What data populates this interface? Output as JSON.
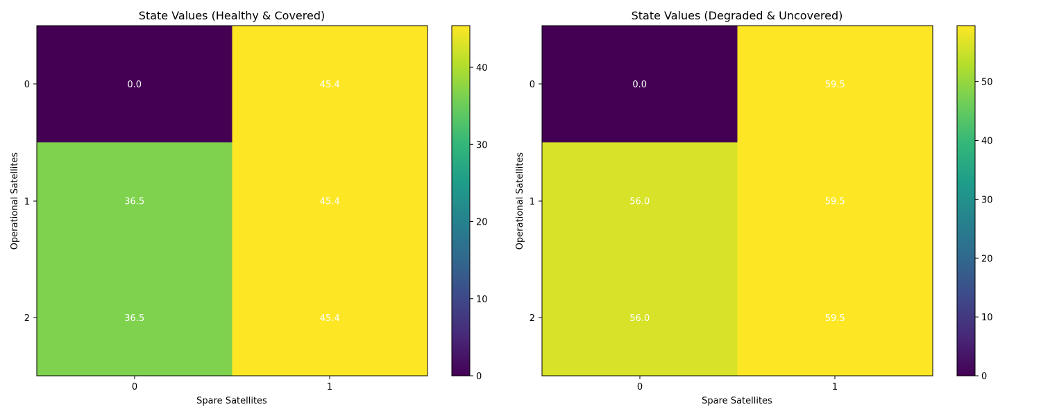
{
  "chart_data": [
    {
      "type": "heatmap",
      "title": "State Values (Healthy & Covered)",
      "xlabel": "Spare Satellites",
      "ylabel": "Operational Satellites",
      "x_ticks": [
        "0",
        "1"
      ],
      "y_ticks": [
        "0",
        "1",
        "2"
      ],
      "values": [
        [
          0.0,
          45.4
        ],
        [
          36.5,
          45.4
        ],
        [
          36.5,
          45.4
        ]
      ],
      "cell_labels": [
        [
          "0.0",
          "45.4"
        ],
        [
          "36.5",
          "45.4"
        ],
        [
          "36.5",
          "45.4"
        ]
      ],
      "colormap": "viridis",
      "vmin": 0,
      "vmax": 45.4,
      "colorbar_ticks": [
        "0",
        "10",
        "20",
        "30",
        "40"
      ]
    },
    {
      "type": "heatmap",
      "title": "State Values (Degraded & Uncovered)",
      "xlabel": "Spare Satellites",
      "ylabel": "Operational Satellites",
      "x_ticks": [
        "0",
        "1"
      ],
      "y_ticks": [
        "0",
        "1",
        "2"
      ],
      "values": [
        [
          0.0,
          59.5
        ],
        [
          56.0,
          59.5
        ],
        [
          56.0,
          59.5
        ]
      ],
      "cell_labels": [
        [
          "0.0",
          "59.5"
        ],
        [
          "56.0",
          "59.5"
        ],
        [
          "56.0",
          "59.5"
        ]
      ],
      "colormap": "viridis",
      "vmin": 0,
      "vmax": 59.5,
      "colorbar_ticks": [
        "0",
        "10",
        "20",
        "30",
        "40",
        "50"
      ]
    }
  ],
  "colors": {
    "viridis": [
      "#440154",
      "#482878",
      "#3e4989",
      "#31688e",
      "#26828e",
      "#1f9e89",
      "#35b779",
      "#6ece58",
      "#b5de2b",
      "#fde725"
    ],
    "cell_text": "#ffffff"
  }
}
